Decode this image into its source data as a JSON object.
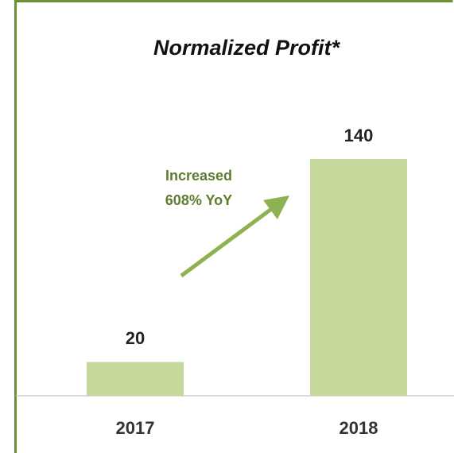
{
  "chart_data": {
    "type": "bar",
    "title": "Normalized Profit*",
    "categories": [
      "2017",
      "2018"
    ],
    "values": [
      20,
      140
    ],
    "color": "#c4d99b",
    "annotation": [
      "Increased",
      "608% YoY"
    ],
    "annotation_color": "#5e7d2f",
    "arrow_color": "#8eb251"
  }
}
